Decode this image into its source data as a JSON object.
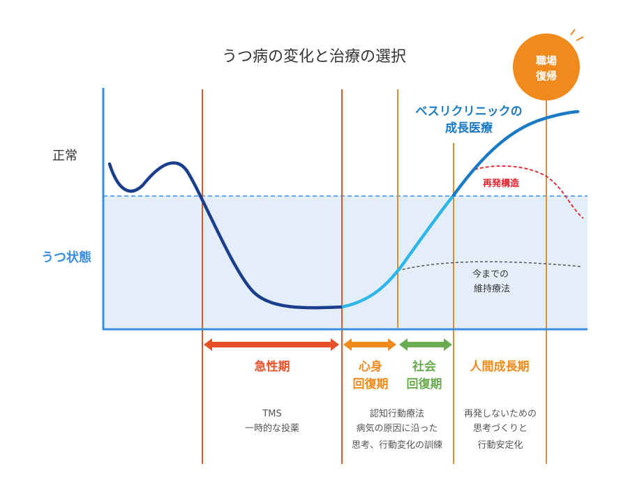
{
  "title": "うつ病の変化と治療の選択",
  "y_labels": {
    "normal": "正常",
    "depressed": "うつ状態"
  },
  "badge": {
    "line1": "職場",
    "line2": "復帰"
  },
  "growth_label": {
    "line1": "ベスリクリニックの",
    "line2": "成長医療"
  },
  "relapse_label": "再発構造",
  "maintenance_label": {
    "line1": "今までの",
    "line2": "維持療法"
  },
  "phases": [
    {
      "label1": "急性期",
      "label2": "",
      "color": "#e8502a",
      "desc": [
        "TMS",
        "一時的な投薬"
      ]
    },
    {
      "label1": "心身",
      "label2": "回復期",
      "color": "#f08a1c",
      "desc": [
        "認知行動療法",
        "病気の原因に沿った",
        "思考、行動変化の訓練"
      ]
    },
    {
      "label1": "社会",
      "label2": "回復期",
      "color": "#6aab4f",
      "desc": []
    },
    {
      "label1": "人間成長期",
      "label2": "",
      "color": "#f08a1c",
      "desc": [
        "再発しないための",
        "思考づくりと",
        "行動安定化"
      ]
    }
  ],
  "colors": {
    "axis": "#3a8ee0",
    "depressed_zone": "#e4eef8",
    "curve_dark": "#1a3e8c",
    "curve_light": "#2fb6e8",
    "curve_growth": "#1b7ac4",
    "relapse": "#e0202a",
    "maintenance": "#555555",
    "badge": "#f08a1c"
  }
}
